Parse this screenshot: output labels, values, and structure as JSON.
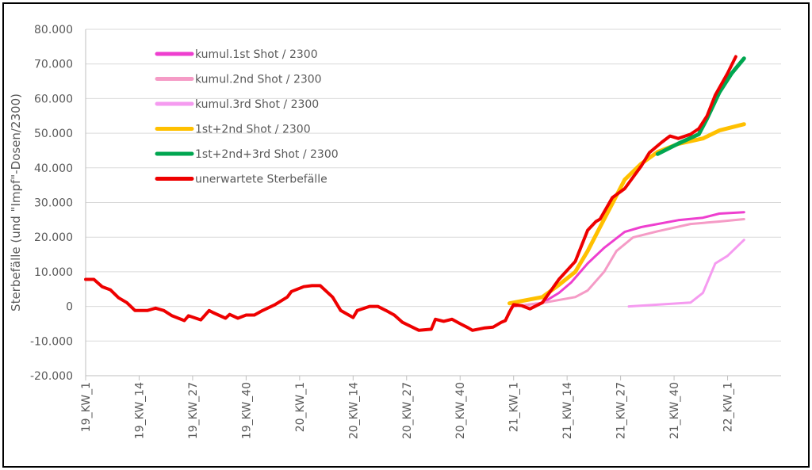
{
  "chart_data": {
    "type": "line",
    "title": "",
    "xlabel": "",
    "ylabel": "Sterbefälle (und \"Impf\"-Dosen/2300)",
    "ylim": [
      -20000,
      80000
    ],
    "yticks": [
      -20000,
      -10000,
      0,
      10000,
      20000,
      30000,
      40000,
      50000,
      60000,
      70000,
      80000
    ],
    "ytick_labels": [
      "-20.000",
      "-10.000",
      "0",
      "10.000",
      "20.000",
      "30.000",
      "40.000",
      "50.000",
      "60.000",
      "70.000",
      "80.000"
    ],
    "x_unit": "week index from 19_KW_1",
    "xlim": [
      0,
      169
    ],
    "xticks": [
      0,
      13,
      26,
      39,
      52,
      65,
      78,
      91,
      104,
      117,
      130,
      143,
      156
    ],
    "xtick_labels": [
      "19_KW_1",
      "19_KW_14",
      "19_KW_27",
      "19_KW_40",
      "20_KW_1",
      "20_KW_14",
      "20_KW_27",
      "20_KW_40",
      "21_KW_1",
      "21_KW_14",
      "21_KW_27",
      "21_KW_40",
      "22_KW_1"
    ],
    "grid": "horizontal",
    "legend_position": "top-left",
    "series": [
      {
        "name": "kumul.1st Shot / 2300",
        "color": "#ee3fcf",
        "width": 3,
        "points": [
          [
            104,
            0
          ],
          [
            111,
            1000
          ],
          [
            115,
            3900
          ],
          [
            118,
            6900
          ],
          [
            122,
            12400
          ],
          [
            126,
            16900
          ],
          [
            131,
            21500
          ],
          [
            135,
            22900
          ],
          [
            144,
            24900
          ],
          [
            150,
            25600
          ],
          [
            154,
            26800
          ],
          [
            160,
            27200
          ]
        ]
      },
      {
        "name": "kumul.2nd Shot / 2300",
        "color": "#f59bc6",
        "width": 3,
        "points": [
          [
            104,
            0
          ],
          [
            111,
            1000
          ],
          [
            119,
            2700
          ],
          [
            122,
            4600
          ],
          [
            126,
            10000
          ],
          [
            129,
            16000
          ],
          [
            133,
            19900
          ],
          [
            139,
            21700
          ],
          [
            147,
            23800
          ],
          [
            154,
            24500
          ],
          [
            160,
            25200
          ]
        ]
      },
      {
        "name": "kumul.3rd Shot / 2300",
        "color": "#f59bf0",
        "width": 3,
        "points": [
          [
            132,
            0
          ],
          [
            147,
            1100
          ],
          [
            150,
            3900
          ],
          [
            153,
            12400
          ],
          [
            156,
            14600
          ],
          [
            160,
            19200
          ]
        ]
      },
      {
        "name": "1st+2nd Shot / 2300",
        "color": "#ffc000",
        "width": 5,
        "points": [
          [
            103,
            900
          ],
          [
            111,
            2700
          ],
          [
            115,
            6200
          ],
          [
            119,
            10000
          ],
          [
            122,
            16000
          ],
          [
            125,
            22900
          ],
          [
            128,
            29700
          ],
          [
            131,
            36600
          ],
          [
            135,
            41200
          ],
          [
            139,
            44600
          ],
          [
            144,
            46900
          ],
          [
            150,
            48500
          ],
          [
            154,
            50800
          ],
          [
            160,
            52600
          ]
        ]
      },
      {
        "name": "1st+2nd+3rd Shot / 2300",
        "color": "#00a650",
        "width": 5,
        "points": [
          [
            139,
            44000
          ],
          [
            144,
            47000
          ],
          [
            149,
            49700
          ],
          [
            151,
            54200
          ],
          [
            154,
            61800
          ],
          [
            157,
            67300
          ],
          [
            160,
            71600
          ]
        ]
      },
      {
        "name": "unerwartete Sterbefälle",
        "color": "#ee0000",
        "width": 4,
        "points": [
          [
            0,
            7800
          ],
          [
            2,
            7800
          ],
          [
            4,
            5700
          ],
          [
            6,
            4800
          ],
          [
            8,
            2500
          ],
          [
            10,
            1100
          ],
          [
            12,
            -1200
          ],
          [
            15,
            -1200
          ],
          [
            17,
            -500
          ],
          [
            19,
            -1200
          ],
          [
            21,
            -2700
          ],
          [
            24,
            -4100
          ],
          [
            25,
            -2700
          ],
          [
            28,
            -3900
          ],
          [
            30,
            -1200
          ],
          [
            31,
            -1800
          ],
          [
            34,
            -3400
          ],
          [
            35,
            -2300
          ],
          [
            37,
            -3400
          ],
          [
            39,
            -2500
          ],
          [
            41,
            -2500
          ],
          [
            43,
            -1200
          ],
          [
            46,
            500
          ],
          [
            49,
            2700
          ],
          [
            50,
            4300
          ],
          [
            53,
            5700
          ],
          [
            55,
            6000
          ],
          [
            57,
            6000
          ],
          [
            60,
            2700
          ],
          [
            62,
            -1200
          ],
          [
            65,
            -3200
          ],
          [
            66,
            -1200
          ],
          [
            69,
            0
          ],
          [
            71,
            0
          ],
          [
            73,
            -1200
          ],
          [
            75,
            -2500
          ],
          [
            77,
            -4600
          ],
          [
            81,
            -6900
          ],
          [
            84,
            -6600
          ],
          [
            85,
            -3700
          ],
          [
            87,
            -4300
          ],
          [
            89,
            -3700
          ],
          [
            91,
            -5000
          ],
          [
            93,
            -6200
          ],
          [
            94,
            -6900
          ],
          [
            97,
            -6200
          ],
          [
            99,
            -6000
          ],
          [
            101,
            -4600
          ],
          [
            102,
            -4100
          ],
          [
            103,
            -1600
          ],
          [
            104,
            500
          ],
          [
            106,
            200
          ],
          [
            108,
            -700
          ],
          [
            111,
            1100
          ],
          [
            115,
            7800
          ],
          [
            119,
            13000
          ],
          [
            122,
            22000
          ],
          [
            124,
            24500
          ],
          [
            125,
            25200
          ],
          [
            128,
            31400
          ],
          [
            131,
            34000
          ],
          [
            135,
            40500
          ],
          [
            137,
            44400
          ],
          [
            140,
            47400
          ],
          [
            142,
            49200
          ],
          [
            144,
            48500
          ],
          [
            147,
            49700
          ],
          [
            149,
            51300
          ],
          [
            151,
            55000
          ],
          [
            153,
            61000
          ],
          [
            156,
            67300
          ],
          [
            158,
            72100
          ]
        ]
      }
    ]
  }
}
